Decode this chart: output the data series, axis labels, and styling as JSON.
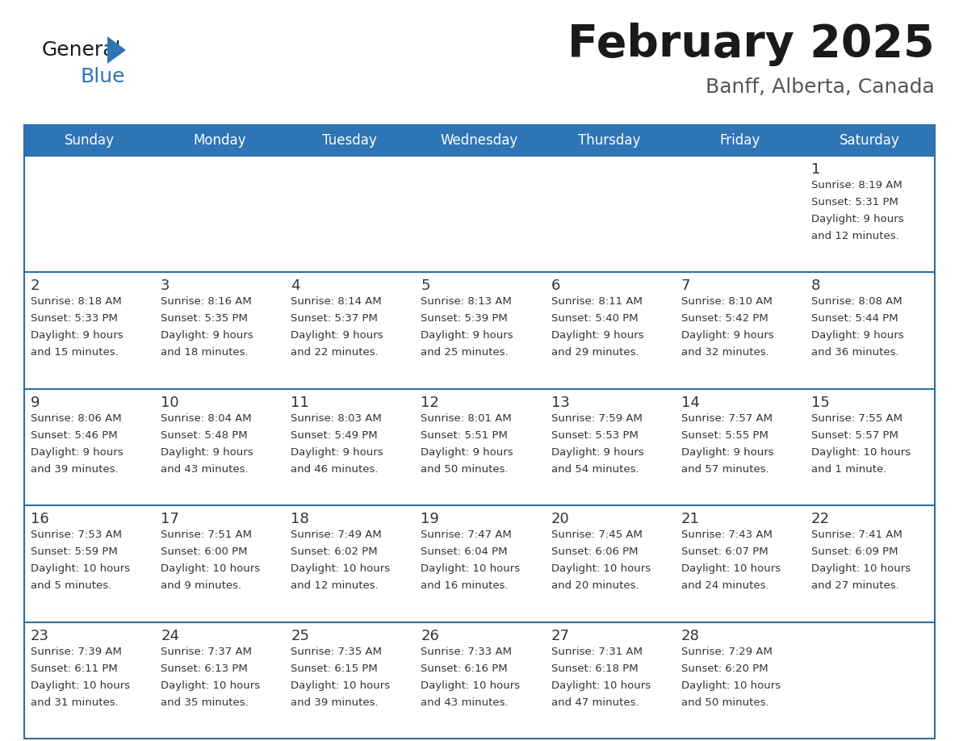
{
  "title": "February 2025",
  "subtitle": "Banff, Alberta, Canada",
  "header_bg": "#2E75B6",
  "header_text_color": "#FFFFFF",
  "cell_bg": "#FFFFFF",
  "cell_bg_alt": "#F5F5F5",
  "border_color": "#2E6EA6",
  "text_color": "#333333",
  "days_of_week": [
    "Sunday",
    "Monday",
    "Tuesday",
    "Wednesday",
    "Thursday",
    "Friday",
    "Saturday"
  ],
  "logo_general_color": "#1a1a1a",
  "logo_blue_color": "#2E75B6",
  "title_color": "#1a1a1a",
  "subtitle_color": "#555555",
  "calendar_data": [
    [
      null,
      null,
      null,
      null,
      null,
      null,
      {
        "day": "1",
        "sunrise": "8:19 AM",
        "sunset": "5:31 PM",
        "daylight1": "9 hours",
        "daylight2": "and 12 minutes."
      }
    ],
    [
      {
        "day": "2",
        "sunrise": "8:18 AM",
        "sunset": "5:33 PM",
        "daylight1": "9 hours",
        "daylight2": "and 15 minutes."
      },
      {
        "day": "3",
        "sunrise": "8:16 AM",
        "sunset": "5:35 PM",
        "daylight1": "9 hours",
        "daylight2": "and 18 minutes."
      },
      {
        "day": "4",
        "sunrise": "8:14 AM",
        "sunset": "5:37 PM",
        "daylight1": "9 hours",
        "daylight2": "and 22 minutes."
      },
      {
        "day": "5",
        "sunrise": "8:13 AM",
        "sunset": "5:39 PM",
        "daylight1": "9 hours",
        "daylight2": "and 25 minutes."
      },
      {
        "day": "6",
        "sunrise": "8:11 AM",
        "sunset": "5:40 PM",
        "daylight1": "9 hours",
        "daylight2": "and 29 minutes."
      },
      {
        "day": "7",
        "sunrise": "8:10 AM",
        "sunset": "5:42 PM",
        "daylight1": "9 hours",
        "daylight2": "and 32 minutes."
      },
      {
        "day": "8",
        "sunrise": "8:08 AM",
        "sunset": "5:44 PM",
        "daylight1": "9 hours",
        "daylight2": "and 36 minutes."
      }
    ],
    [
      {
        "day": "9",
        "sunrise": "8:06 AM",
        "sunset": "5:46 PM",
        "daylight1": "9 hours",
        "daylight2": "and 39 minutes."
      },
      {
        "day": "10",
        "sunrise": "8:04 AM",
        "sunset": "5:48 PM",
        "daylight1": "9 hours",
        "daylight2": "and 43 minutes."
      },
      {
        "day": "11",
        "sunrise": "8:03 AM",
        "sunset": "5:49 PM",
        "daylight1": "9 hours",
        "daylight2": "and 46 minutes."
      },
      {
        "day": "12",
        "sunrise": "8:01 AM",
        "sunset": "5:51 PM",
        "daylight1": "9 hours",
        "daylight2": "and 50 minutes."
      },
      {
        "day": "13",
        "sunrise": "7:59 AM",
        "sunset": "5:53 PM",
        "daylight1": "9 hours",
        "daylight2": "and 54 minutes."
      },
      {
        "day": "14",
        "sunrise": "7:57 AM",
        "sunset": "5:55 PM",
        "daylight1": "9 hours",
        "daylight2": "and 57 minutes."
      },
      {
        "day": "15",
        "sunrise": "7:55 AM",
        "sunset": "5:57 PM",
        "daylight1": "10 hours",
        "daylight2": "and 1 minute."
      }
    ],
    [
      {
        "day": "16",
        "sunrise": "7:53 AM",
        "sunset": "5:59 PM",
        "daylight1": "10 hours",
        "daylight2": "and 5 minutes."
      },
      {
        "day": "17",
        "sunrise": "7:51 AM",
        "sunset": "6:00 PM",
        "daylight1": "10 hours",
        "daylight2": "and 9 minutes."
      },
      {
        "day": "18",
        "sunrise": "7:49 AM",
        "sunset": "6:02 PM",
        "daylight1": "10 hours",
        "daylight2": "and 12 minutes."
      },
      {
        "day": "19",
        "sunrise": "7:47 AM",
        "sunset": "6:04 PM",
        "daylight1": "10 hours",
        "daylight2": "and 16 minutes."
      },
      {
        "day": "20",
        "sunrise": "7:45 AM",
        "sunset": "6:06 PM",
        "daylight1": "10 hours",
        "daylight2": "and 20 minutes."
      },
      {
        "day": "21",
        "sunrise": "7:43 AM",
        "sunset": "6:07 PM",
        "daylight1": "10 hours",
        "daylight2": "and 24 minutes."
      },
      {
        "day": "22",
        "sunrise": "7:41 AM",
        "sunset": "6:09 PM",
        "daylight1": "10 hours",
        "daylight2": "and 27 minutes."
      }
    ],
    [
      {
        "day": "23",
        "sunrise": "7:39 AM",
        "sunset": "6:11 PM",
        "daylight1": "10 hours",
        "daylight2": "and 31 minutes."
      },
      {
        "day": "24",
        "sunrise": "7:37 AM",
        "sunset": "6:13 PM",
        "daylight1": "10 hours",
        "daylight2": "and 35 minutes."
      },
      {
        "day": "25",
        "sunrise": "7:35 AM",
        "sunset": "6:15 PM",
        "daylight1": "10 hours",
        "daylight2": "and 39 minutes."
      },
      {
        "day": "26",
        "sunrise": "7:33 AM",
        "sunset": "6:16 PM",
        "daylight1": "10 hours",
        "daylight2": "and 43 minutes."
      },
      {
        "day": "27",
        "sunrise": "7:31 AM",
        "sunset": "6:18 PM",
        "daylight1": "10 hours",
        "daylight2": "and 47 minutes."
      },
      {
        "day": "28",
        "sunrise": "7:29 AM",
        "sunset": "6:20 PM",
        "daylight1": "10 hours",
        "daylight2": "and 50 minutes."
      },
      null
    ]
  ]
}
